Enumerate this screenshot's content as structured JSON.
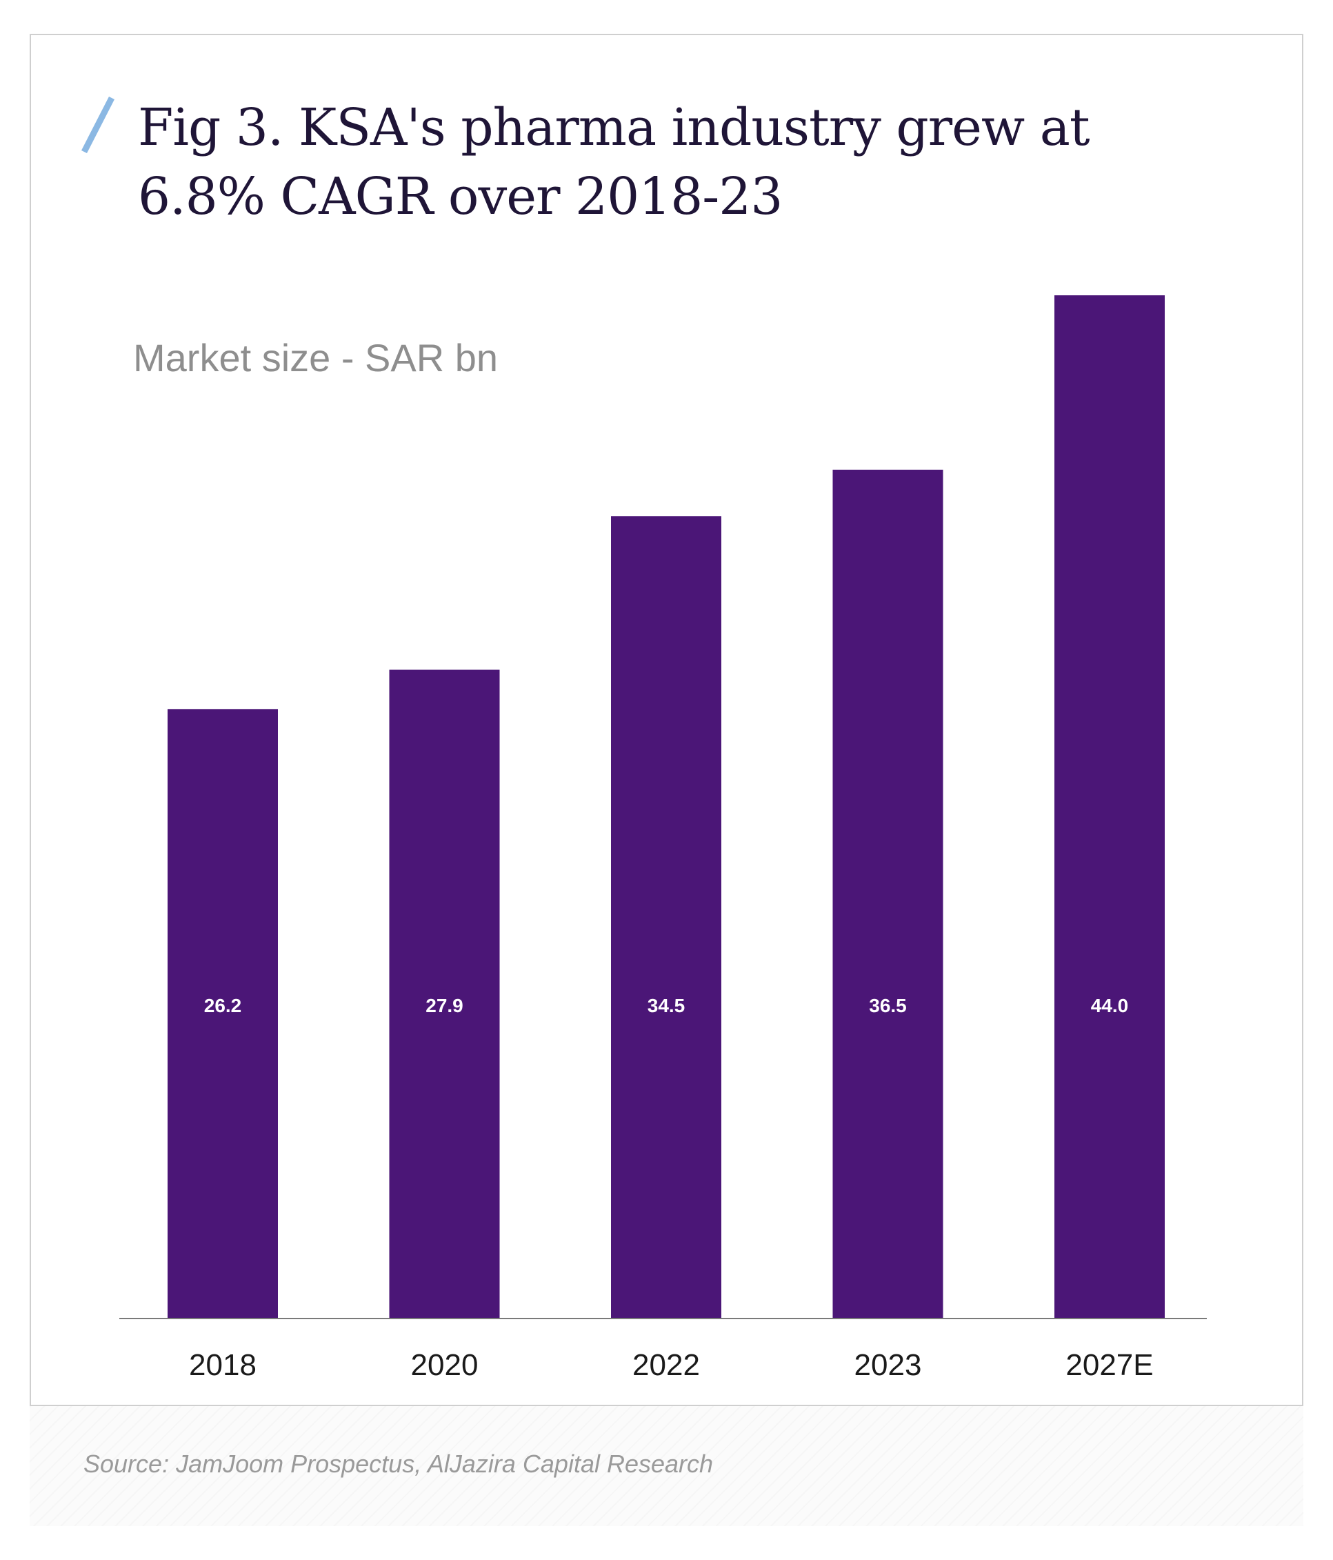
{
  "colors": {
    "bar": "#4b1677",
    "accent": "#8bb8e3",
    "title": "#1f1537",
    "subtitle": "#8e8e8e",
    "axis": "#7a7a7a"
  },
  "header": {
    "icon": "slash-icon",
    "title_line1": "Fig 3. KSA's pharma industry grew at",
    "title_line2": "6.8% CAGR over 2018-23"
  },
  "chart_data": {
    "type": "bar",
    "title": "Fig 3. KSA's pharma industry grew at 6.8% CAGR over 2018-23",
    "subtitle": "Market size - SAR bn",
    "categories": [
      "2018",
      "2020",
      "2022",
      "2023",
      "2027E"
    ],
    "values": [
      26.2,
      27.9,
      34.5,
      36.5,
      44.0
    ],
    "data_labels": [
      "26.2",
      "27.9",
      "34.5",
      "36.5",
      "44.0"
    ],
    "xlabel": "",
    "ylabel": "",
    "ylim": [
      0,
      44.0
    ],
    "grid": false,
    "legend": "none"
  },
  "footer": {
    "source": "Source: JamJoom Prospectus, AlJazira Capital Research"
  }
}
